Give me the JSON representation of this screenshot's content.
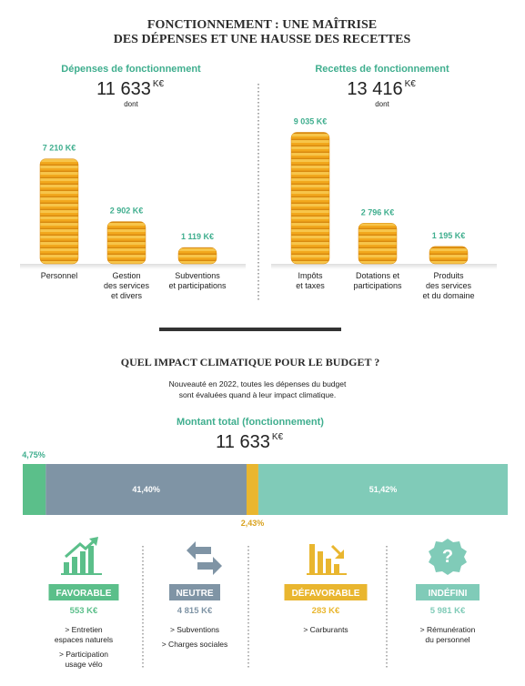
{
  "title": [
    "FONCTIONNEMENT : UNE MAÎTRISE",
    "DES DÉPENSES ET UNE HAUSSE DES RECETTES"
  ],
  "chart_data": [
    {
      "type": "coins",
      "title": "Dépenses de fonctionnement",
      "total": "11 633",
      "total_unit": "K€",
      "note": "dont",
      "categories": [
        "Personnel",
        "Gestion\ndes services\net divers",
        "Subventions\net participations"
      ],
      "values": [
        7210,
        2902,
        1119
      ],
      "value_labels": [
        "7 210 K€",
        "2 902 K€",
        "1 119 K€"
      ],
      "color": "#f2a81d"
    },
    {
      "type": "coins",
      "title": "Recettes de fonctionnement",
      "total": "13 416",
      "total_unit": "K€",
      "note": "dont",
      "categories": [
        "Impôts\net taxes",
        "Dotations et\nparticipations",
        "Produits\ndes services\net du domaine"
      ],
      "values": [
        9035,
        2796,
        1195
      ],
      "value_labels": [
        "9 035 K€",
        "2 796 K€",
        "1 195 K€"
      ],
      "color": "#f2a81d"
    },
    {
      "type": "stacked_bar",
      "title": "QUEL IMPACT CLIMATIQUE POUR LE BUDGET ?",
      "subtitle": [
        "Nouveauté en 2022, toutes les dépenses du budget",
        "sont évaluées quand à leur impact climatique."
      ],
      "total_title": "Montant total (fonctionnement)",
      "total": "11 633",
      "total_unit": "K€",
      "series": [
        {
          "color": "#5bbf8a",
          "values": [
            4.75
          ],
          "value_labels": [
            "4,75%"
          ]
        },
        {
          "color": "#7f94a5",
          "values": [
            41.4
          ],
          "value_labels": [
            "41,40%"
          ]
        },
        {
          "color": "#e9b62f",
          "values": [
            2.43
          ],
          "value_labels": [
            "2,43%"
          ]
        },
        {
          "color": "#80cbb8",
          "values": [
            51.42
          ],
          "value_labels": [
            "51,42%"
          ]
        }
      ]
    }
  ],
  "cards": [
    {
      "label": "FAVORABLE",
      "amount": "553 K€",
      "items": [
        "> Entretien\nespaces naturels",
        "> Participation\nusage vélo"
      ]
    },
    {
      "label": "NEUTRE",
      "amount": "4 815 K€",
      "items": [
        "> Subventions",
        "> Charges sociales"
      ]
    },
    {
      "label": "DÉFAVORABLE",
      "amount": "283 K€",
      "items": [
        "> Carburants"
      ]
    },
    {
      "label": "INDÉFINI",
      "amount": "5 981 K€",
      "items": [
        "> Rémunération\ndu personnel"
      ]
    }
  ]
}
